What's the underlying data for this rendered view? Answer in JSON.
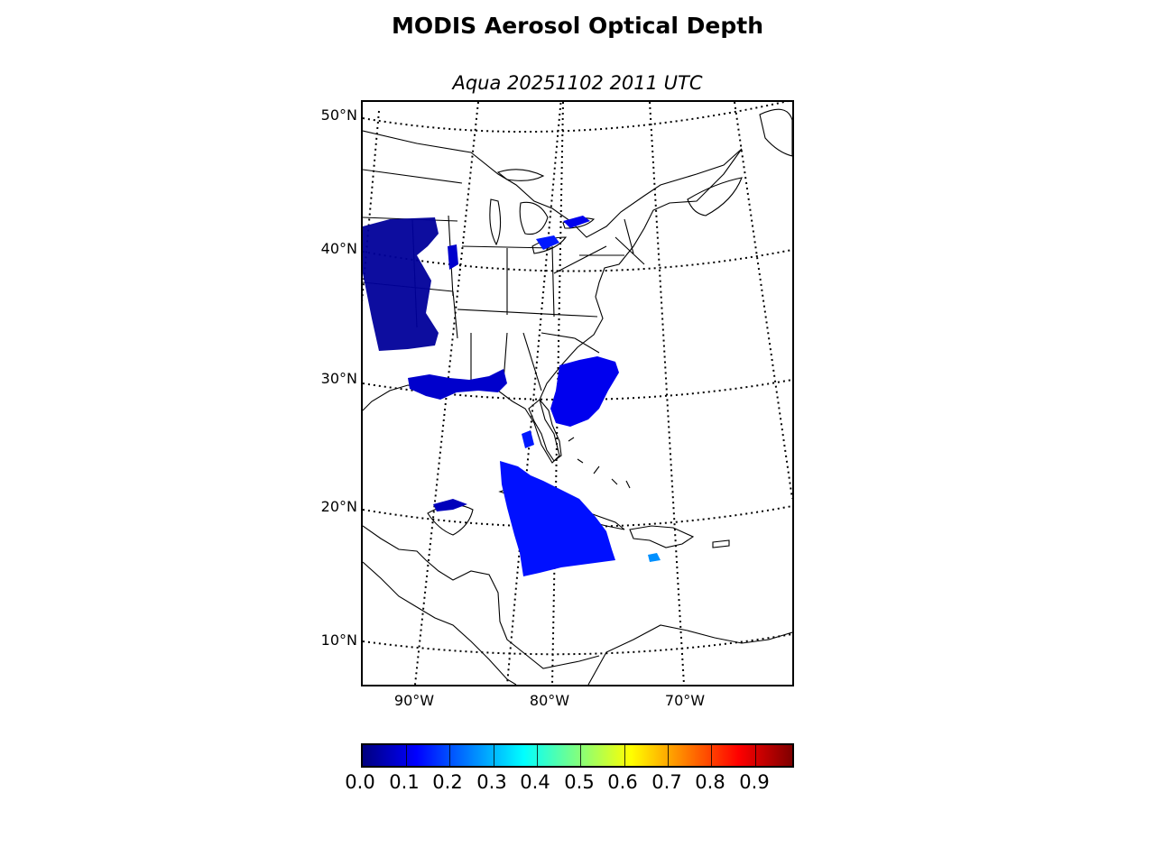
{
  "title": "MODIS Aerosol Optical Depth",
  "subtitle": "Aqua 20251102 2011 UTC",
  "map": {
    "projection": "lambert-conformal",
    "lat_labels": [
      "50°N",
      "40°N",
      "30°N",
      "20°N",
      "10°N"
    ],
    "lon_labels": [
      "90°W",
      "80°W",
      "70°W"
    ],
    "graticule_style": "dotted",
    "coastline_color": "#000000"
  },
  "colorbar": {
    "colormap": "jet",
    "range": [
      0.0,
      0.98
    ],
    "tick_labels": [
      "0.0",
      "0.1",
      "0.2",
      "0.3",
      "0.4",
      "0.5",
      "0.6",
      "0.7",
      "0.8",
      "0.9"
    ]
  },
  "aod_regions": [
    {
      "area": "Midwest / Mississippi Valley",
      "value": 0.02,
      "color": "#00009a"
    },
    {
      "area": "Gulf Coast",
      "value": 0.08,
      "color": "#0000cc"
    },
    {
      "area": "Off Georgia / Carolina coast",
      "value": 0.12,
      "color": "#0000ee"
    },
    {
      "area": "Cuba / Caribbean",
      "value": 0.15,
      "color": "#0010ff"
    },
    {
      "area": "South of Hispaniola",
      "value": 0.25,
      "color": "#0090ff"
    }
  ]
}
